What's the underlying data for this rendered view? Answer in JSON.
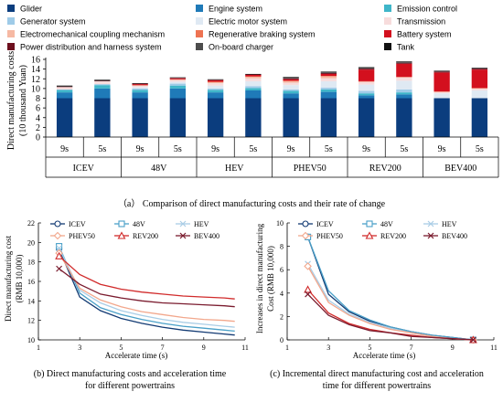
{
  "chart_data": [
    {
      "type": "bar",
      "stacked": true,
      "caption": "（a） Comparison of direct manufacturing costs and their rate of change",
      "ylabel_lines": [
        "Direct manufacturing costs",
        "(10 thousand Yuan)"
      ],
      "ylim": [
        0,
        16
      ],
      "yticks": [
        0,
        2,
        4,
        6,
        8,
        10,
        12,
        14,
        16
      ],
      "groups": [
        "ICEV",
        "48V",
        "HEV",
        "PHEV50",
        "REV200",
        "BEV400"
      ],
      "categories": [
        "9s",
        "5s",
        "9s",
        "5s",
        "9s",
        "5s",
        "9s",
        "5s",
        "9s",
        "5s",
        "9s",
        "5s"
      ],
      "legend": [
        {
          "name": "Glider",
          "color": "#0b3d7e"
        },
        {
          "name": "Engine system",
          "color": "#1f7ab8"
        },
        {
          "name": "Emission control",
          "color": "#3fb6c9"
        },
        {
          "name": "Generator system",
          "color": "#9fcbe8"
        },
        {
          "name": "Electric motor system",
          "color": "#dfe9f3"
        },
        {
          "name": "Transmission",
          "color": "#f7dcdc"
        },
        {
          "name": "Electromechanical coupling mechanism",
          "color": "#f6b9a3"
        },
        {
          "name": "Regenerative braking system",
          "color": "#ee7352"
        },
        {
          "name": "Battery system",
          "color": "#d3101e"
        },
        {
          "name": "Power distribution and harness system",
          "color": "#6d0f1e"
        },
        {
          "name": "On-board charger",
          "color": "#4d4d4d"
        },
        {
          "name": "Tank",
          "color": "#111111"
        }
      ],
      "series": [
        {
          "name": "Glider",
          "values": [
            8.0,
            8.0,
            8.0,
            8.0,
            8.0,
            8.0,
            8.0,
            8.0,
            8.0,
            8.0,
            8.0,
            8.0
          ]
        },
        {
          "name": "Engine system",
          "values": [
            1.2,
            2.0,
            1.2,
            2.0,
            1.2,
            1.6,
            1.0,
            1.3,
            0.6,
            0.8,
            0,
            0
          ]
        },
        {
          "name": "Emission control",
          "values": [
            0.5,
            0.7,
            0.5,
            0.6,
            0.5,
            0.5,
            0.5,
            0.5,
            0.4,
            0.4,
            0,
            0
          ]
        },
        {
          "name": "Generator system",
          "values": [
            0.1,
            0.2,
            0.3,
            0.4,
            0.3,
            0.4,
            0.3,
            0.4,
            0.5,
            0.6,
            0,
            0
          ]
        },
        {
          "name": "Electric motor system",
          "values": [
            0,
            0,
            0.3,
            0.4,
            0.6,
            1.0,
            0.9,
            1.3,
            1.3,
            1.8,
            1.0,
            1.6
          ]
        },
        {
          "name": "Transmission",
          "values": [
            0.5,
            0.6,
            0.3,
            0.4,
            0.5,
            0.6,
            0.5,
            0.6,
            0.6,
            0.7,
            0.3,
            0.4
          ]
        },
        {
          "name": "Electromechanical coupling mechanism",
          "values": [
            0,
            0,
            0,
            0,
            0.2,
            0.3,
            0.3,
            0.4,
            0,
            0,
            0,
            0
          ]
        },
        {
          "name": "Regenerative braking system",
          "values": [
            0,
            0,
            0.1,
            0.1,
            0.1,
            0.1,
            0.1,
            0.1,
            0.1,
            0.1,
            0.1,
            0.1
          ]
        },
        {
          "name": "Battery system",
          "values": [
            0,
            0,
            0.2,
            0.2,
            0.3,
            0.3,
            0.3,
            0.4,
            2.4,
            2.7,
            3.9,
            3.8
          ]
        },
        {
          "name": "Power distribution and harness system",
          "values": [
            0.1,
            0.1,
            0.1,
            0.1,
            0.1,
            0.1,
            0.2,
            0.2,
            0.2,
            0.2,
            0.2,
            0.2
          ]
        },
        {
          "name": "On-board charger",
          "values": [
            0,
            0,
            0,
            0,
            0,
            0,
            0.2,
            0.2,
            0.2,
            0.2,
            0.2,
            0.2
          ]
        },
        {
          "name": "Tank",
          "values": [
            0.2,
            0.2,
            0.1,
            0.1,
            0.1,
            0.1,
            0.1,
            0.1,
            0.1,
            0.1,
            0,
            0
          ]
        }
      ]
    },
    {
      "type": "line",
      "caption_lines": [
        "(b) Direct manufacturing costs and acceleration time",
        "for different powertrains"
      ],
      "xlabel": "Accelerate time (s)",
      "ylabel_lines": [
        "Direct manufacturing cost",
        "(RMB 10,000)"
      ],
      "xlim": [
        1,
        11
      ],
      "ylim": [
        10,
        22
      ],
      "xticks": [
        1,
        3,
        5,
        7,
        9,
        11
      ],
      "yticks": [
        10,
        12,
        14,
        16,
        18,
        20,
        22
      ],
      "x": [
        2,
        3,
        4,
        5,
        6,
        7,
        8,
        9,
        10,
        10.5
      ],
      "series": [
        {
          "name": "ICEV",
          "color": "#123a73",
          "marker": "circle",
          "values": [
            19.3,
            14.4,
            13.0,
            12.2,
            11.7,
            11.3,
            11.0,
            10.8,
            10.6,
            10.5
          ]
        },
        {
          "name": "48V",
          "color": "#4aa0c8",
          "marker": "square",
          "values": [
            19.6,
            14.8,
            13.3,
            12.6,
            12.1,
            11.7,
            11.4,
            11.2,
            11.0,
            10.9
          ]
        },
        {
          "name": "HEV",
          "color": "#a9cde6",
          "marker": "x",
          "values": [
            19.4,
            15.1,
            13.8,
            13.0,
            12.5,
            12.1,
            11.8,
            11.6,
            11.4,
            11.3
          ]
        },
        {
          "name": "PHEV50",
          "color": "#f2a78c",
          "marker": "diamond",
          "values": [
            18.9,
            15.3,
            14.1,
            13.4,
            12.9,
            12.6,
            12.3,
            12.1,
            12.0,
            11.9
          ]
        },
        {
          "name": "REV200",
          "color": "#d12b2b",
          "marker": "triangle",
          "values": [
            18.6,
            16.7,
            15.7,
            15.2,
            14.9,
            14.7,
            14.5,
            14.4,
            14.3,
            14.2
          ]
        },
        {
          "name": "BEV400",
          "color": "#7a1b2e",
          "marker": "x",
          "values": [
            17.3,
            15.7,
            14.7,
            14.3,
            14.0,
            13.8,
            13.7,
            13.6,
            13.5,
            13.4
          ]
        }
      ]
    },
    {
      "type": "line",
      "caption_lines": [
        "(c) Incremental direct manufacturing cost and acceleration",
        "time for different powertrains"
      ],
      "xlabel": "Accelerate time (s)",
      "ylabel_lines": [
        "Increases in direct manufacturing",
        "Cost (RMB 10,000)"
      ],
      "xlim": [
        1,
        11
      ],
      "ylim": [
        0,
        10
      ],
      "xticks": [
        1,
        3,
        5,
        7,
        9,
        11
      ],
      "yticks": [
        0,
        2,
        4,
        6,
        8,
        10
      ],
      "x": [
        2,
        3,
        4,
        5,
        6,
        7,
        8,
        9,
        10
      ],
      "series": [
        {
          "name": "ICEV",
          "color": "#123a73",
          "marker": "circle",
          "values": [
            8.8,
            3.9,
            2.4,
            1.6,
            1.1,
            0.7,
            0.4,
            0.2,
            0.0
          ]
        },
        {
          "name": "48V",
          "color": "#4aa0c8",
          "marker": "square",
          "values": [
            8.8,
            4.2,
            2.5,
            1.7,
            1.1,
            0.7,
            0.4,
            0.2,
            0.0
          ]
        },
        {
          "name": "HEV",
          "color": "#a9cde6",
          "marker": "x",
          "values": [
            6.5,
            3.4,
            2.2,
            1.5,
            1.0,
            0.6,
            0.3,
            0.1,
            0.0
          ]
        },
        {
          "name": "PHEV50",
          "color": "#f2a78c",
          "marker": "diamond",
          "values": [
            6.3,
            3.2,
            2.1,
            1.4,
            0.9,
            0.6,
            0.3,
            0.1,
            0.0
          ]
        },
        {
          "name": "REV200",
          "color": "#d12b2b",
          "marker": "triangle",
          "values": [
            4.3,
            2.3,
            1.4,
            0.9,
            0.6,
            0.4,
            0.2,
            0.1,
            0.0
          ]
        },
        {
          "name": "BEV400",
          "color": "#7a1b2e",
          "marker": "x",
          "values": [
            3.9,
            2.1,
            1.3,
            0.8,
            0.6,
            0.3,
            0.2,
            0.1,
            0.0
          ]
        }
      ]
    }
  ]
}
